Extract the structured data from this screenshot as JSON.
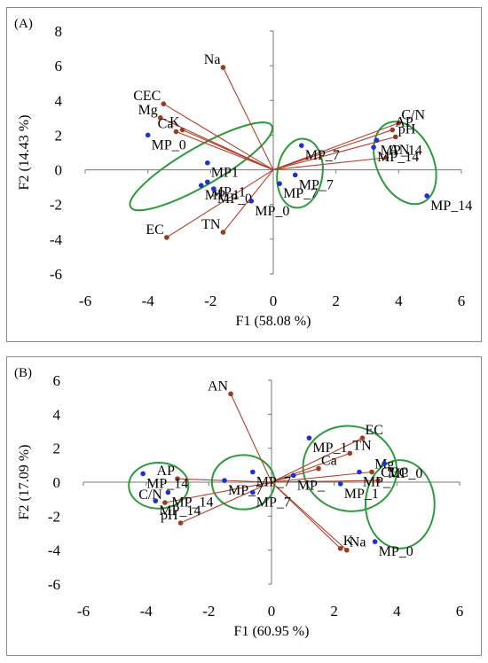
{
  "chart_data": [
    {
      "panel": "(A)",
      "type": "scatter",
      "xlabel": "F1 (58.08 %)",
      "ylabel": "F2 (14.43 %)",
      "xlim": [
        -6,
        6
      ],
      "ylim": [
        -6,
        8
      ],
      "xticks": [
        -6,
        -4,
        -2,
        0,
        2,
        4,
        6
      ],
      "yticks": [
        -6,
        -4,
        -2,
        0,
        2,
        4,
        6,
        8
      ],
      "grid": false,
      "variables": [
        {
          "label": "Na",
          "x": -1.6,
          "y": 5.9
        },
        {
          "label": "CEC",
          "x": -3.5,
          "y": 3.8
        },
        {
          "label": "Mg",
          "x": -3.6,
          "y": 3.0
        },
        {
          "label": "K",
          "x": -2.9,
          "y": 2.3
        },
        {
          "label": "Ca",
          "x": -3.1,
          "y": 2.2
        },
        {
          "label": "EC",
          "x": -3.4,
          "y": -3.9
        },
        {
          "label": "TN",
          "x": -1.6,
          "y": -3.6
        },
        {
          "label": "C/N",
          "x": 4.0,
          "y": 2.7
        },
        {
          "label": "AP",
          "x": 3.8,
          "y": 2.3
        },
        {
          "label": "pH",
          "x": 3.9,
          "y": 1.9
        },
        {
          "label": "AN",
          "x": 3.6,
          "y": 0.7
        }
      ],
      "observations": [
        {
          "label": "MP_0",
          "x": -4.0,
          "y": 2.0
        },
        {
          "label": "MP1",
          "x": -2.1,
          "y": 0.4
        },
        {
          "label": "MP_1",
          "x": -2.1,
          "y": -0.7
        },
        {
          "label": "MP_1",
          "x": -2.3,
          "y": -0.9
        },
        {
          "label": "MP_0",
          "x": -1.9,
          "y": -1.1
        },
        {
          "label": "MP_0",
          "x": -0.7,
          "y": -1.8
        },
        {
          "label": "MP_7",
          "x": 0.9,
          "y": 1.4
        },
        {
          "label": "MP_7",
          "x": 0.7,
          "y": -0.3
        },
        {
          "label": "MP_7",
          "x": 0.2,
          "y": -0.8
        },
        {
          "label": "MP_14",
          "x": 3.3,
          "y": 1.7
        },
        {
          "label": "MP_14",
          "x": 3.2,
          "y": 1.3
        },
        {
          "label": "MP_14",
          "x": 4.9,
          "y": -1.5
        }
      ]
    },
    {
      "panel": "(B)",
      "type": "scatter",
      "xlabel": "F1 (60.95 %)",
      "ylabel": "F2 (17.09 %)",
      "xlim": [
        -6,
        6
      ],
      "ylim": [
        -6,
        6
      ],
      "xticks": [
        -6,
        -4,
        -2,
        0,
        2,
        4,
        6
      ],
      "yticks": [
        -6,
        -4,
        -2,
        0,
        2,
        4,
        6
      ],
      "grid": false,
      "variables": [
        {
          "label": "AN",
          "x": -1.3,
          "y": 5.2
        },
        {
          "label": "AP",
          "x": -3.0,
          "y": 0.2
        },
        {
          "label": "pH",
          "x": -2.9,
          "y": -2.4
        },
        {
          "label": "C/N",
          "x": -3.4,
          "y": -1.2
        },
        {
          "label": "EC",
          "x": 2.9,
          "y": 2.6
        },
        {
          "label": "TN",
          "x": 2.5,
          "y": 1.7
        },
        {
          "label": "Ca",
          "x": 1.5,
          "y": 0.8
        },
        {
          "label": "Mg",
          "x": 3.2,
          "y": 0.6
        },
        {
          "label": "CEC",
          "x": 3.4,
          "y": 0.1
        },
        {
          "label": "K",
          "x": 2.2,
          "y": -3.9
        },
        {
          "label": "Na",
          "x": 2.4,
          "y": -4.0
        }
      ],
      "observations": [
        {
          "label": "MP_14",
          "x": -4.1,
          "y": 0.5
        },
        {
          "label": "MP_14",
          "x": -3.3,
          "y": -0.6
        },
        {
          "label": "MP_14",
          "x": -3.7,
          "y": -1.1
        },
        {
          "label": "MP_7",
          "x": -1.5,
          "y": 0.1
        },
        {
          "label": "MP_7",
          "x": -0.6,
          "y": 0.6
        },
        {
          "label": "MP_7",
          "x": -0.6,
          "y": -0.6
        },
        {
          "label": "MP_1",
          "x": 1.2,
          "y": 2.6
        },
        {
          "label": "MP_",
          "x": 0.7,
          "y": 0.4
        },
        {
          "label": "MP_",
          "x": 2.8,
          "y": 0.6
        },
        {
          "label": "MP_0",
          "x": 3.6,
          "y": 1.1
        },
        {
          "label": "MP_1",
          "x": 2.2,
          "y": -0.1
        },
        {
          "label": "MP_0",
          "x": 3.3,
          "y": -3.5
        }
      ]
    }
  ]
}
